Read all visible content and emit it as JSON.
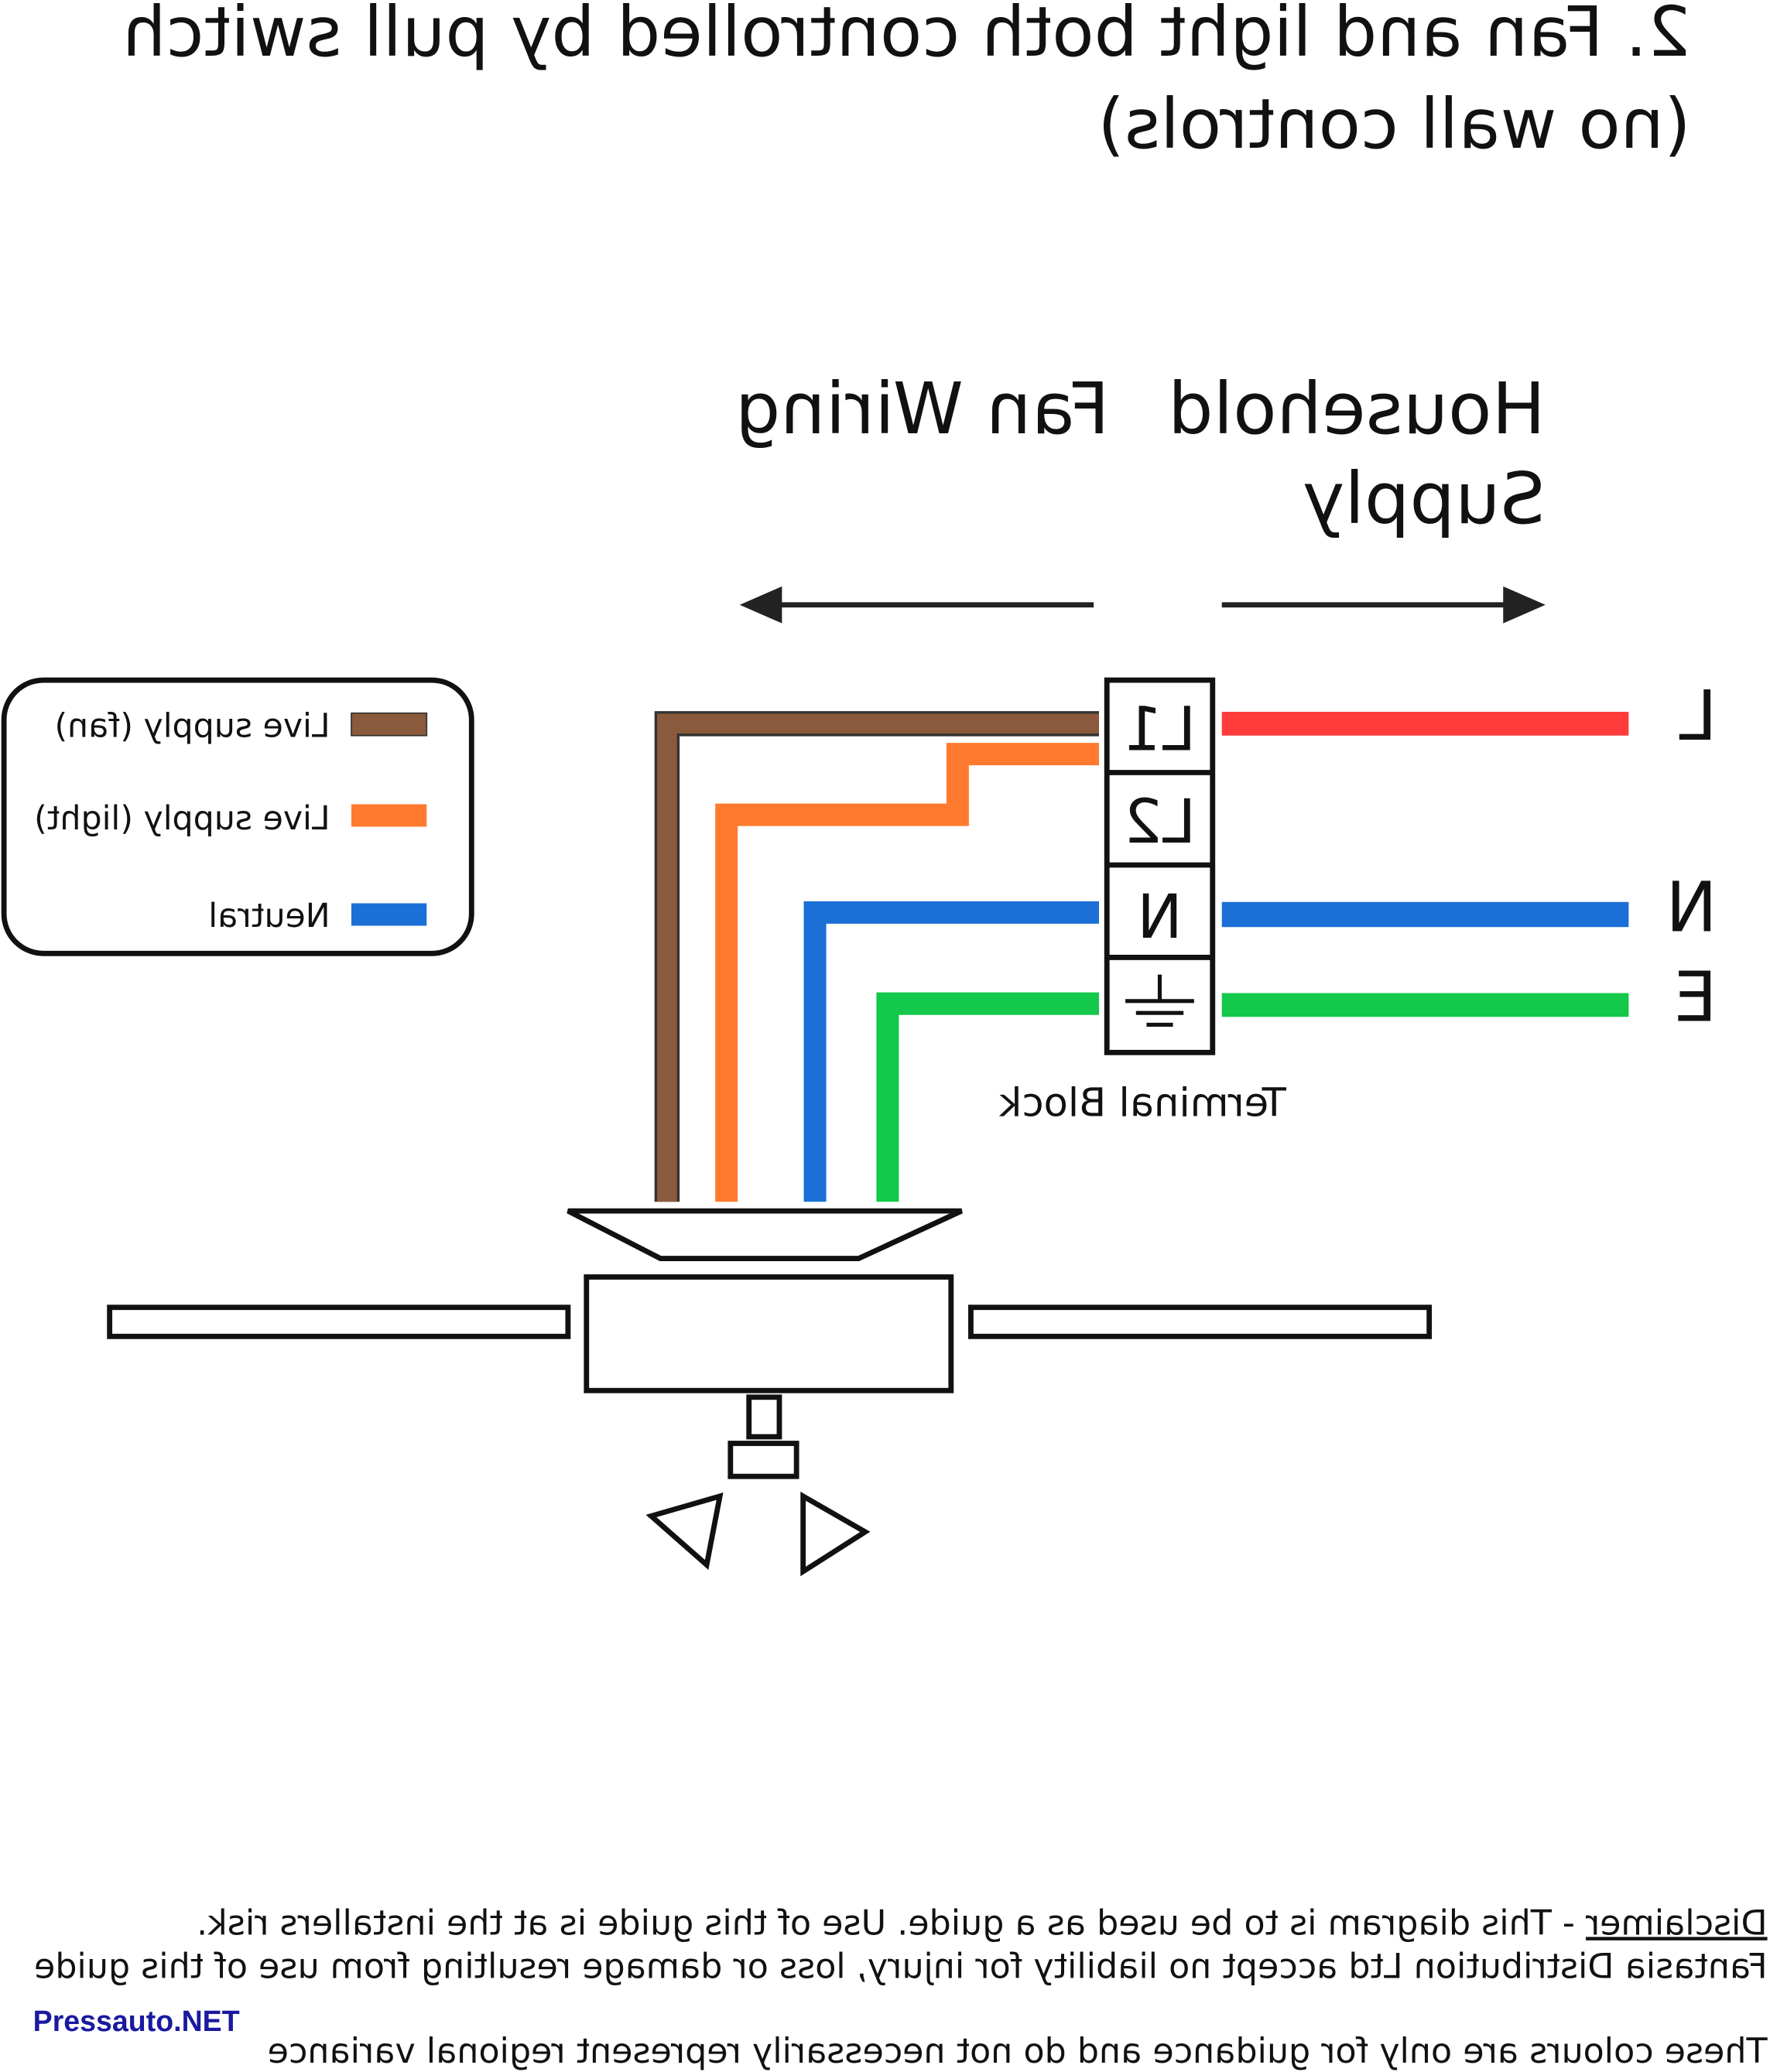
{
  "title": {
    "line1": "2. Fan and light both controlled by pull switch",
    "line2": "(no wall controls)"
  },
  "headings": {
    "household_line1": "Household",
    "household_line2": "Supply",
    "fan_wiring": "Fan Wiring"
  },
  "legend": [
    {
      "label": "Live supply (fan)",
      "color": "#8B5A3C"
    },
    {
      "label": "Live supply (light)",
      "color": "#FF7A2F"
    },
    {
      "label": "Neutral",
      "color": "#1B6FD6"
    }
  ],
  "terminal_block": {
    "label": "Terminal Block",
    "cells": [
      "L1",
      "L2",
      "N",
      "earth"
    ]
  },
  "supply_labels": {
    "live": "L",
    "neutral": "N",
    "earth": "E"
  },
  "wire_colors": {
    "live_red": "#FF3B3B",
    "brown": "#8B5A3C",
    "orange": "#FF7A2F",
    "blue": "#1B6FD6",
    "green": "#13C84A"
  },
  "disclaimer": {
    "heading": "Disclaimer",
    "line1": " - This diagram is to be used as a guide.  Use of this guide is at the installers risk.",
    "line2": "Fantasia Distribution Ltd accept no liability for injury, loss or damage resulting from use of this guide",
    "line3": "These colours are only for guidance and do not necessarily represent regional variance"
  },
  "watermark": "Pressauto.NET"
}
